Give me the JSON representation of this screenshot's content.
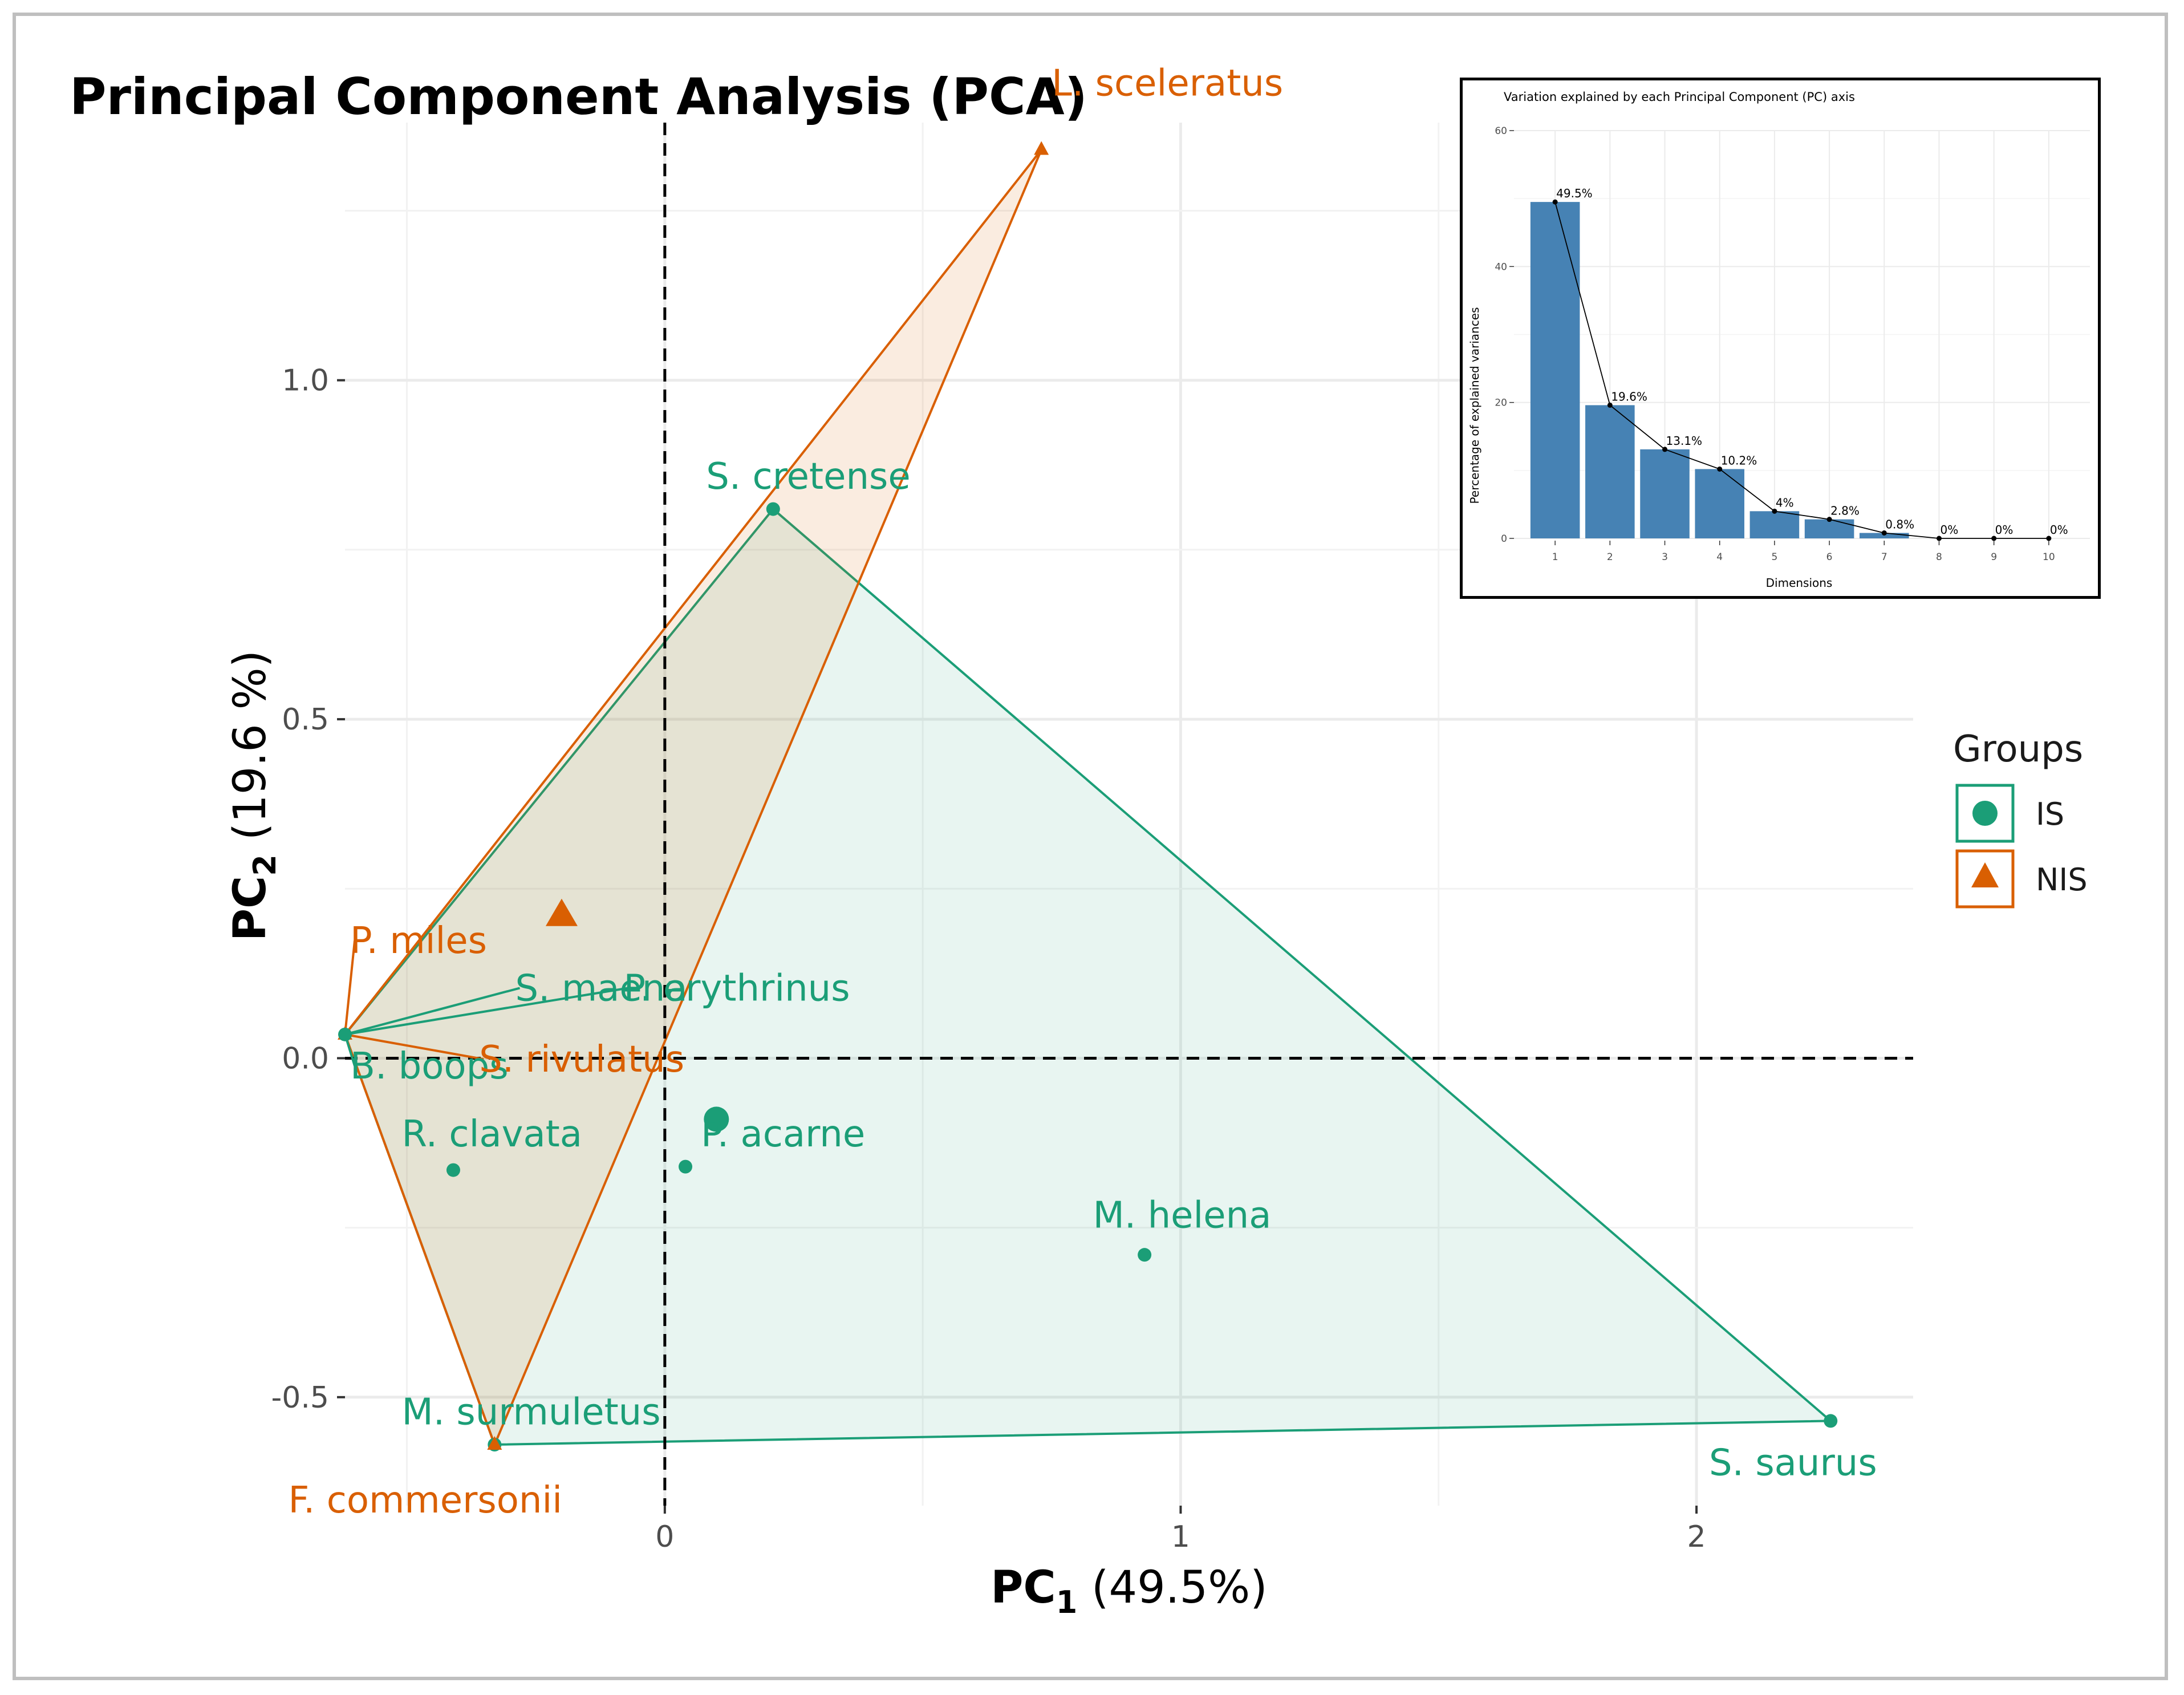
{
  "title": "Principal Component Analysis (PCA)",
  "colors": {
    "IS": "#1b9e77",
    "NIS": "#d95f02",
    "IS_fill": "#e6f4ee",
    "NIS_fill": "#fbe6d8",
    "bar": "#4682b4"
  },
  "chart_data": [
    {
      "type": "scatter",
      "title": "Principal Component Analysis (PCA)",
      "xlabel": {
        "main": "PC",
        "sub": "1",
        "rest": " (49.5%)"
      },
      "ylabel": {
        "main": "PC",
        "sub": "2",
        "rest": " (19.6 %)"
      },
      "xlim": [
        -0.62,
        2.42
      ],
      "ylim": [
        -0.66,
        1.38
      ],
      "xticks": [
        0,
        1,
        2
      ],
      "xtick_labels": [
        "0",
        "1",
        "2"
      ],
      "yticks": [
        -0.5,
        0.0,
        0.5,
        1.0
      ],
      "ytick_labels": [
        "-0.5",
        "0.0",
        "0.5",
        "1.0"
      ],
      "reference_lines": {
        "x": 0,
        "y": 0
      },
      "legend": {
        "title": "Groups",
        "position": "right",
        "items": [
          {
            "label": "IS",
            "shape": "circle"
          },
          {
            "label": "NIS",
            "shape": "triangle"
          }
        ]
      },
      "groups": [
        {
          "name": "IS",
          "centroid": {
            "x": 0.1,
            "y": -0.09
          },
          "hull": [
            "S. cretense",
            "S. saurus",
            "M. surmuletus",
            "B. boops"
          ]
        },
        {
          "name": "NIS",
          "centroid": {
            "x": -0.2,
            "y": 0.21
          },
          "hull": [
            "L. sceleratus",
            "F. commersonii",
            "P. miles"
          ]
        }
      ],
      "points": [
        {
          "label": "L. sceleratus",
          "group": "NIS",
          "x": 0.73,
          "y": 1.34,
          "label_dx": 0.02,
          "label_dy": 0.08,
          "anchor": "start"
        },
        {
          "label": "S. cretense",
          "group": "IS",
          "x": 0.21,
          "y": 0.81,
          "label_dx": -0.13,
          "label_dy": 0.03,
          "anchor": "start"
        },
        {
          "label": "P. miles",
          "group": "NIS",
          "x": -0.62,
          "y": 0.035,
          "label_dx": 0.01,
          "label_dy": 0.12,
          "anchor": "start",
          "leader": true
        },
        {
          "label": "S. maena",
          "group": "IS",
          "x": -0.62,
          "y": 0.035,
          "label_dx": 0.33,
          "label_dy": 0.05,
          "anchor": "start",
          "leader": true
        },
        {
          "label": "P. erythrinus",
          "group": "IS",
          "x": -0.62,
          "y": 0.035,
          "label_dx": 0.54,
          "label_dy": 0.05,
          "anchor": "start",
          "leader": true
        },
        {
          "label": "B. boops",
          "group": "IS",
          "x": -0.62,
          "y": 0.035,
          "label_dx": 0.01,
          "label_dy": -0.065,
          "anchor": "start",
          "leader": true
        },
        {
          "label": "S. rivulatus",
          "group": "NIS",
          "x": -0.62,
          "y": 0.035,
          "label_dx": 0.26,
          "label_dy": -0.055,
          "anchor": "start",
          "leader": true
        },
        {
          "label": "R. clavata",
          "group": "IS",
          "x": -0.41,
          "y": -0.165,
          "label_dx": -0.1,
          "label_dy": 0.035,
          "anchor": "start"
        },
        {
          "label": "P. acarne",
          "group": "IS",
          "x": 0.04,
          "y": -0.16,
          "label_dx": 0.03,
          "label_dy": 0.03,
          "anchor": "start"
        },
        {
          "label": "M. helena",
          "group": "IS",
          "x": 0.93,
          "y": -0.29,
          "label_dx": -0.1,
          "label_dy": 0.04,
          "anchor": "start"
        },
        {
          "label": "M. surmuletus",
          "group": "IS",
          "x": -0.33,
          "y": -0.57,
          "label_dx": -0.18,
          "label_dy": 0.03,
          "anchor": "start"
        },
        {
          "label": "F. commersonii",
          "group": "NIS",
          "x": -0.33,
          "y": -0.57,
          "label_dx": -0.4,
          "label_dy": -0.1,
          "anchor": "start"
        },
        {
          "label": "S. saurus",
          "group": "IS",
          "x": 2.26,
          "y": -0.535,
          "label_dx": 0.09,
          "label_dy": -0.08,
          "anchor": "end"
        }
      ]
    },
    {
      "type": "bar",
      "title": "Variation explained by each Principal Component (PC) axis",
      "xlabel": "Dimensions",
      "ylabel": "Percentage of explained variances",
      "categories": [
        "1",
        "2",
        "3",
        "4",
        "5",
        "6",
        "7",
        "8",
        "9",
        "10"
      ],
      "values": [
        49.5,
        19.6,
        13.1,
        10.2,
        4.0,
        2.8,
        0.8,
        0,
        0,
        0
      ],
      "data_labels": [
        "49.5%",
        "19.6%",
        "13.1%",
        "10.2%",
        "4%",
        "2.8%",
        "0.8%",
        "0%",
        "0%",
        "0%"
      ],
      "ylim": [
        0,
        60
      ],
      "yticks": [
        0,
        20,
        40,
        60
      ],
      "ytick_labels": [
        "0",
        "20",
        "40",
        "60"
      ],
      "line_overlay": true
    }
  ]
}
